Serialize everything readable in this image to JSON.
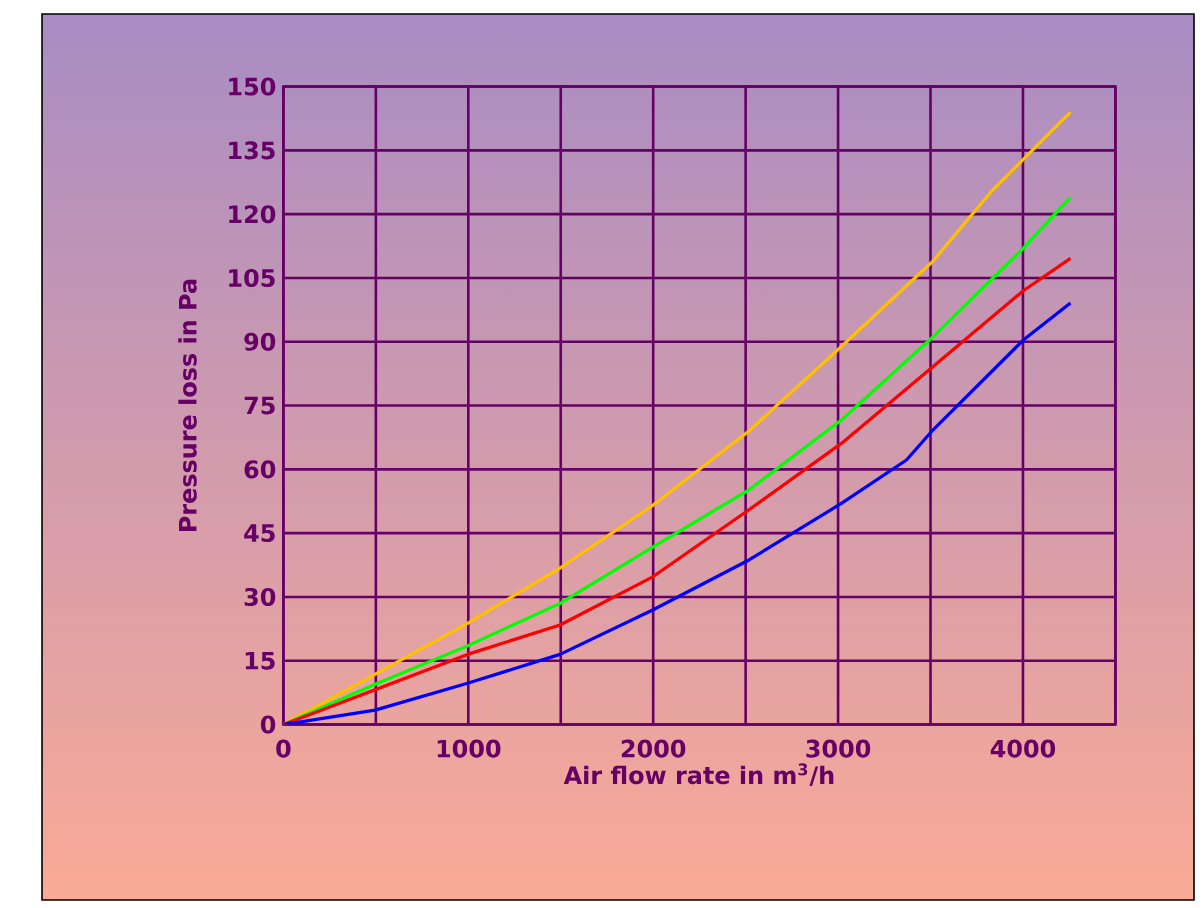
{
  "chart_data": {
    "type": "line",
    "xlabel": "Air flow rate in m$^{3}$/h",
    "ylabel": "Pressure loss in Pa",
    "xlim": [
      0,
      4500
    ],
    "ylim": [
      0,
      150
    ],
    "xticks": [
      0,
      {
        "value": 500,
        "label": null
      },
      1000,
      {
        "value": 1500,
        "label": null
      },
      2000,
      {
        "value": 2500,
        "label": null
      },
      3000,
      {
        "value": 3500,
        "label": null
      },
      4000,
      {
        "value": 4500,
        "label": null
      }
    ],
    "yticks": [
      0,
      15,
      30,
      45,
      60,
      75,
      90,
      105,
      120,
      135,
      150
    ],
    "grid": true,
    "marker": "none",
    "line_style": "solid",
    "series": [
      {
        "color": "#ffc000",
        "x": [
          0,
          996,
          1496,
          2000,
          2518,
          2663,
          3018,
          3514,
          3822,
          4257
        ],
        "values": [
          0,
          23.8,
          36.8,
          51.6,
          69,
          74.8,
          88.9,
          109,
          125,
          144
        ]
      },
      {
        "color": "#00ff00",
        "x": [
          0,
          496,
          996,
          1496,
          2000,
          2518,
          3018,
          3514,
          4002,
          4257
        ],
        "values": [
          0,
          9.5,
          18.5,
          28.5,
          41.8,
          55.2,
          71.6,
          91.2,
          112,
          124
        ]
      },
      {
        "color": "#ff0000",
        "x": [
          0,
          496,
          996,
          1496,
          2000,
          2518,
          3018,
          3514,
          4002,
          4257
        ],
        "values": [
          0,
          8.2,
          16.5,
          23.4,
          34.8,
          50.5,
          66.1,
          84.2,
          102,
          109.6
        ]
      },
      {
        "color": "#0000ff",
        "x": [
          0,
          496,
          996,
          1496,
          2000,
          2518,
          3018,
          3370,
          3514,
          4002,
          4257
        ],
        "values": [
          0,
          3.4,
          9.7,
          16.5,
          27,
          38.7,
          52,
          62.2,
          69.3,
          90.4,
          99.1
        ]
      }
    ]
  }
}
